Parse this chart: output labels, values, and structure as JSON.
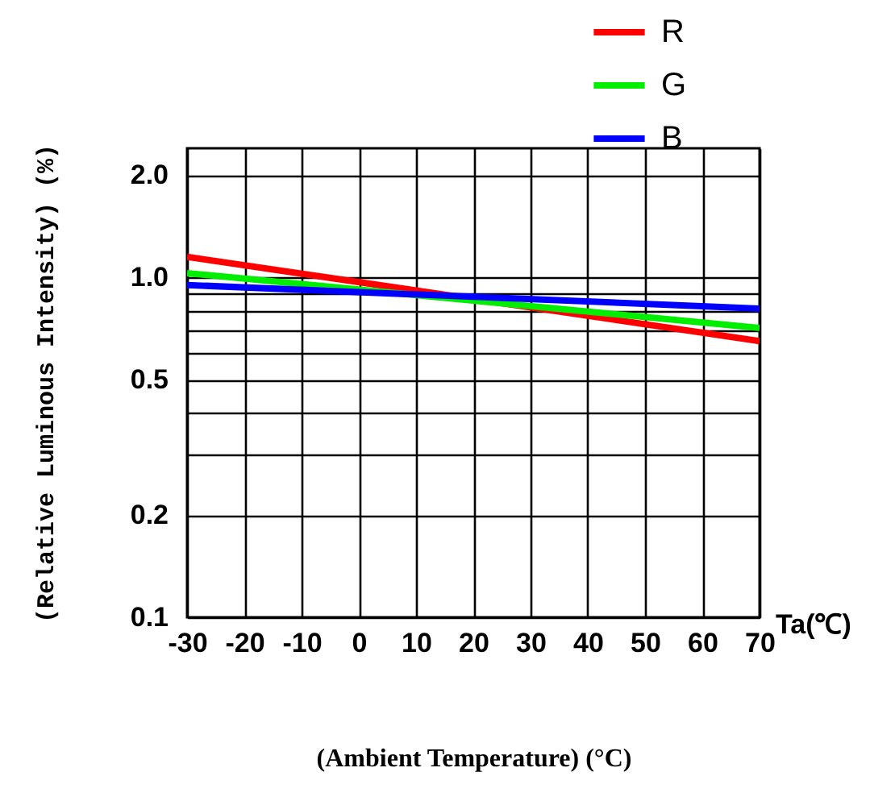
{
  "chart_data": {
    "type": "line",
    "xlabel": "(Ambient Temperature) (°C)",
    "ylabel": "(Relative Luminous Intensity) (%)",
    "x": [
      -30,
      70
    ],
    "series": [
      {
        "name": "R",
        "color": "#ff0000",
        "values": [
          1.15,
          0.65
        ]
      },
      {
        "name": "G",
        "color": "#00ee00",
        "values": [
          1.03,
          0.71
        ]
      },
      {
        "name": "B",
        "color": "#0000ff",
        "values": [
          0.95,
          0.81
        ]
      }
    ],
    "xlim": [
      -30,
      70
    ],
    "xticks": [
      -30,
      -20,
      -10,
      0,
      10,
      20,
      30,
      40,
      50,
      60,
      70
    ],
    "ylim": [
      0.1,
      2.4
    ],
    "yticks": [
      0.1,
      0.2,
      {
        "value": 0.3,
        "label": null
      },
      {
        "value": 0.4,
        "label": null
      },
      0.5,
      {
        "value": 0.6,
        "label": null
      },
      {
        "value": 0.7,
        "label": null
      },
      {
        "value": 0.8,
        "label": null
      },
      {
        "value": 0.9,
        "label": null
      },
      {
        "value": 1,
        "label": "1.0"
      },
      {
        "value": 2,
        "label": "2.0"
      }
    ],
    "log": true,
    "grid": true,
    "legend": "top right",
    "marker": "none",
    "line_style": "solid",
    "annotations": [
      "Ta(℃)"
    ]
  }
}
